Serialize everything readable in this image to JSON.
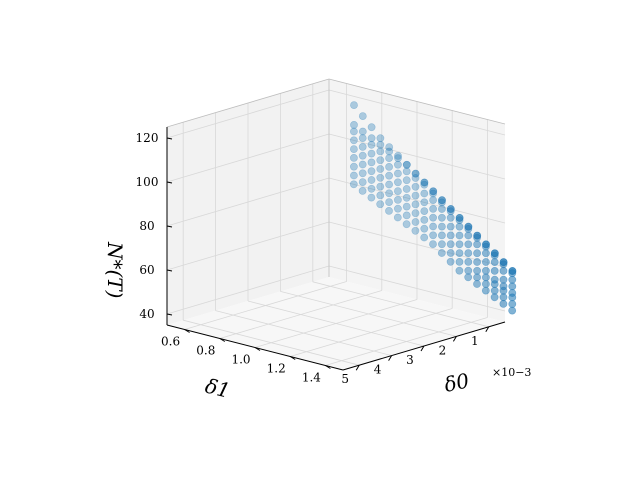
{
  "chart_data": {
    "type": "scatter",
    "projection": "3d",
    "title": "",
    "xlabel": "δ0",
    "ylabel": "δ1",
    "zlabel": "N*(T)",
    "x_offset_label": "×10−3",
    "x_scale": 0.001,
    "xlim": [
      0.5,
      5.5
    ],
    "ylim": [
      0.5,
      1.5
    ],
    "zlim": [
      35,
      125
    ],
    "x_ticks": [
      "1",
      "2",
      "3",
      "4",
      "5"
    ],
    "y_ticks": [
      "0.6",
      "0.8",
      "1.0",
      "1.2",
      "1.4"
    ],
    "z_ticks": [
      "40",
      "60",
      "80",
      "100",
      "120"
    ],
    "grid": true,
    "marker_color": "#1f77b4",
    "x_grid": [
      1.0,
      1.5,
      2.0,
      2.5,
      3.0,
      3.5,
      4.0,
      4.5,
      5.0
    ],
    "y_grid": [
      0.55,
      0.6,
      0.65,
      0.7,
      0.75,
      0.8,
      0.85,
      0.9,
      0.95,
      1.0,
      1.05,
      1.1,
      1.15,
      1.2,
      1.25,
      1.3,
      1.35,
      1.4,
      1.45
    ],
    "z_values": [
      [
        112,
        108,
        104,
        100,
        97,
        94,
        91,
        88,
        85,
        82,
        79,
        76,
        73,
        70,
        67,
        64,
        61,
        58,
        55
      ],
      [
        103,
        101,
        99,
        97,
        95,
        93,
        91,
        88,
        85,
        82,
        79,
        76,
        73,
        70,
        67,
        64,
        61,
        58,
        55
      ],
      [
        100,
        98,
        96,
        94,
        92,
        90,
        88,
        86,
        84,
        81,
        78,
        75,
        72,
        69,
        66,
        63,
        60,
        57,
        54
      ],
      [
        96,
        94,
        92,
        90,
        88,
        86,
        84,
        82,
        80,
        78,
        75,
        72,
        69,
        66,
        63,
        60,
        57,
        54,
        51
      ],
      [
        92,
        90,
        88,
        86,
        84,
        82,
        80,
        78,
        76,
        74,
        71,
        68,
        65,
        62,
        59,
        56,
        53,
        50,
        48
      ],
      [
        88,
        86,
        84,
        82,
        80,
        78,
        76,
        74,
        72,
        70,
        67,
        64,
        61,
        58,
        55,
        52,
        49,
        47,
        45
      ],
      [
        84,
        82,
        80,
        78,
        76,
        74,
        72,
        70,
        68,
        66,
        63,
        60,
        57,
        54,
        51,
        49,
        47,
        45,
        43
      ],
      [
        80,
        78,
        76,
        74,
        72,
        70,
        68,
        66,
        64,
        62,
        59,
        56,
        53,
        50,
        48,
        46,
        44,
        42,
        40
      ],
      [
        76,
        74,
        72,
        70,
        68,
        66,
        64,
        62,
        60,
        58,
        55,
        52,
        49,
        47,
        45,
        43,
        41,
        39,
        37
      ]
    ]
  }
}
